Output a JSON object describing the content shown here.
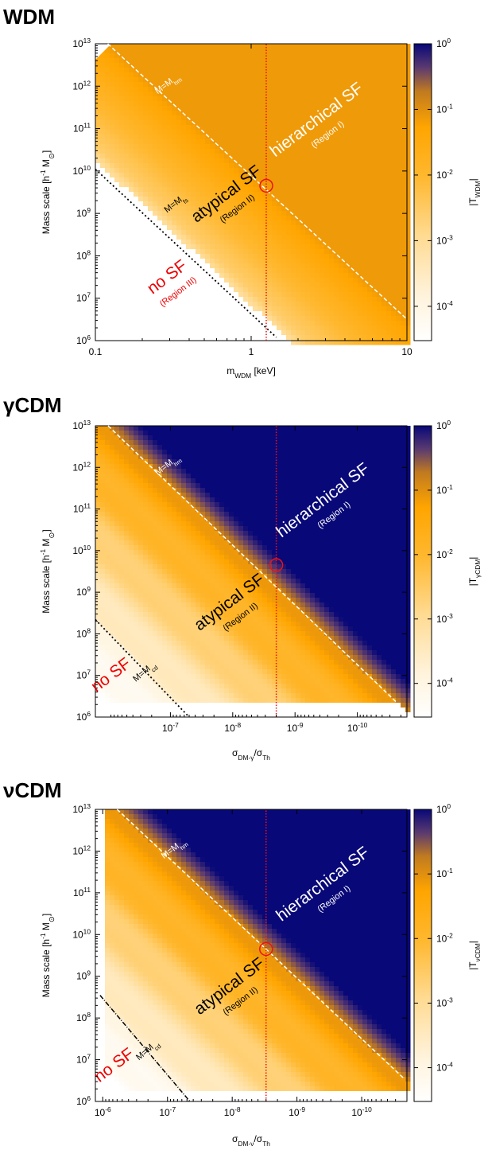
{
  "chart_data": [
    {
      "type": "heatmap",
      "title": "WDM",
      "xlabel": "m_WDM [keV]",
      "ylabel": "Mass scale [h^-1 M_sun]",
      "colorbar_label": "|T_WDM|",
      "x_scale": "log",
      "y_scale": "log",
      "xlim": [
        0.1,
        10
      ],
      "ylim": [
        1000000.0,
        10000000000000.0
      ],
      "colorbar_range": [
        3e-05,
        1
      ],
      "x_ticks": [
        "0.1",
        "1",
        "10"
      ],
      "y_ticks": [
        "10^6",
        "10^7",
        "10^8",
        "10^9",
        "10^10",
        "10^11",
        "10^12",
        "10^13"
      ],
      "cb_ticks": [
        "10^0",
        "10^-1",
        "10^-2",
        "10^-3",
        "10^-4"
      ],
      "colormap": [
        "#ffffff",
        "#fff0d0",
        "#ffd889",
        "#ffa500",
        "#f5a000",
        "#6a4a5a",
        "#0a0a7a"
      ],
      "lines": [
        {
          "label": "M=M_hm",
          "style": "white dashed",
          "points": [
            [
              0.12,
              10000000000000.0
            ],
            [
              10,
              3200000.0
            ]
          ]
        },
        {
          "label": "M=M_fs",
          "style": "black dotted",
          "points": [
            [
              0.1,
              11000000000.0
            ],
            [
              1.45,
              1200000.0
            ]
          ]
        },
        {
          "label": "",
          "style": "red dotted vertical",
          "points": [
            [
              1.25,
              1000000.0
            ],
            [
              1.25,
              10000000000000.0
            ]
          ]
        }
      ],
      "marker": {
        "x": 1.25,
        "y": 4500000000.0,
        "style": "red circle"
      },
      "regions": [
        {
          "text": "hierarchical SF",
          "sub": "(Region I)",
          "color": "white"
        },
        {
          "text": "atypical SF",
          "sub": "(Region II)",
          "color": "black"
        },
        {
          "text": "no SF",
          "sub": "(Region III)",
          "color": "red"
        }
      ]
    },
    {
      "type": "heatmap",
      "title": "γCDM",
      "xlabel": "σ_DM-γ/σ_Th",
      "ylabel": "Mass scale [h^-1 M_sun]",
      "colorbar_label": "|T_γCDM|",
      "x_scale": "log (decreasing)",
      "y_scale": "log",
      "xlim": [
        1.6e-06,
        1.6e-11
      ],
      "ylim": [
        1000000.0,
        10000000000000.0
      ],
      "colorbar_range": [
        3e-05,
        1
      ],
      "x_ticks": [
        "10^-7",
        "10^-8",
        "10^-9",
        "10^-10"
      ],
      "y_ticks": [
        "10^6",
        "10^7",
        "10^8",
        "10^9",
        "10^10",
        "10^11",
        "10^12",
        "10^13"
      ],
      "cb_ticks": [
        "10^0",
        "10^-1",
        "10^-2",
        "10^-3",
        "10^-4"
      ],
      "colormap": [
        "#ffffff",
        "#fff0d0",
        "#ffd889",
        "#ffa500",
        "#f5a000",
        "#6a4a5a",
        "#0a0a7a"
      ],
      "lines": [
        {
          "label": "M=M_hm",
          "style": "white dashed",
          "points": [
            [
              1e-06,
              10000000000000.0
            ],
            [
              2e-11,
              1800000.0
            ]
          ]
        },
        {
          "label": "M=M_cd",
          "style": "black dotted",
          "points": [
            [
              1.6e-06,
              220000000.0
            ],
            [
              5e-08,
              1000000.0
            ]
          ]
        },
        {
          "label": "",
          "style": "red dotted vertical",
          "points": [
            [
              2e-09,
              1000000.0
            ],
            [
              2e-09,
              10000000000000.0
            ]
          ]
        }
      ],
      "marker": {
        "x": 2e-09,
        "y": 4500000000.0,
        "style": "red circle"
      },
      "regions": [
        {
          "text": "hierarchical SF",
          "sub": "(Region I)",
          "color": "white"
        },
        {
          "text": "atypical SF",
          "sub": "(Region II)",
          "color": "black"
        },
        {
          "text": "no SF",
          "sub": "",
          "color": "red"
        }
      ]
    },
    {
      "type": "heatmap",
      "title": "νCDM",
      "xlabel": "σ_DM-ν/σ_Th",
      "ylabel": "Mass scale [h^-1 M_sun]",
      "colorbar_label": "|T_νCDM|",
      "x_scale": "log (decreasing)",
      "y_scale": "log",
      "xlim": [
        1.3e-06,
        2e-11
      ],
      "ylim": [
        1000000.0,
        10000000000000.0
      ],
      "colorbar_range": [
        3e-05,
        1
      ],
      "x_ticks": [
        "10^-6",
        "10^-7",
        "10^-8",
        "10^-9",
        "10^-10"
      ],
      "y_ticks": [
        "10^6",
        "10^7",
        "10^8",
        "10^9",
        "10^10",
        "10^11",
        "10^12",
        "10^13"
      ],
      "cb_ticks": [
        "10^0",
        "10^-1",
        "10^-2",
        "10^-3",
        "10^-4"
      ],
      "colormap": [
        "#ffffff",
        "#fff0d0",
        "#ffd889",
        "#ffa500",
        "#f5a000",
        "#6a4a5a",
        "#0a0a7a"
      ],
      "lines": [
        {
          "label": "M=M_hm",
          "style": "white dashed",
          "points": [
            [
              6e-07,
              10000000000000.0
            ],
            [
              2.2e-11,
              3500000.0
            ]
          ]
        },
        {
          "label": "M=M_cd",
          "style": "black dash-dot",
          "points": [
            [
              1.1e-06,
              350000000.0
            ],
            [
              4.5e-08,
              1000000.0
            ]
          ]
        },
        {
          "label": "",
          "style": "red dotted vertical",
          "points": [
            [
              3e-09,
              1000000.0
            ],
            [
              3e-09,
              10000000000000.0
            ]
          ]
        }
      ],
      "marker": {
        "x": 3e-09,
        "y": 4500000000.0,
        "style": "red circle"
      },
      "regions": [
        {
          "text": "hierarchical SF",
          "sub": "(Region I)",
          "color": "white"
        },
        {
          "text": "atypical SF",
          "sub": "(Region II)",
          "color": "black"
        },
        {
          "text": "no SF",
          "sub": "",
          "color": "red"
        }
      ]
    }
  ]
}
